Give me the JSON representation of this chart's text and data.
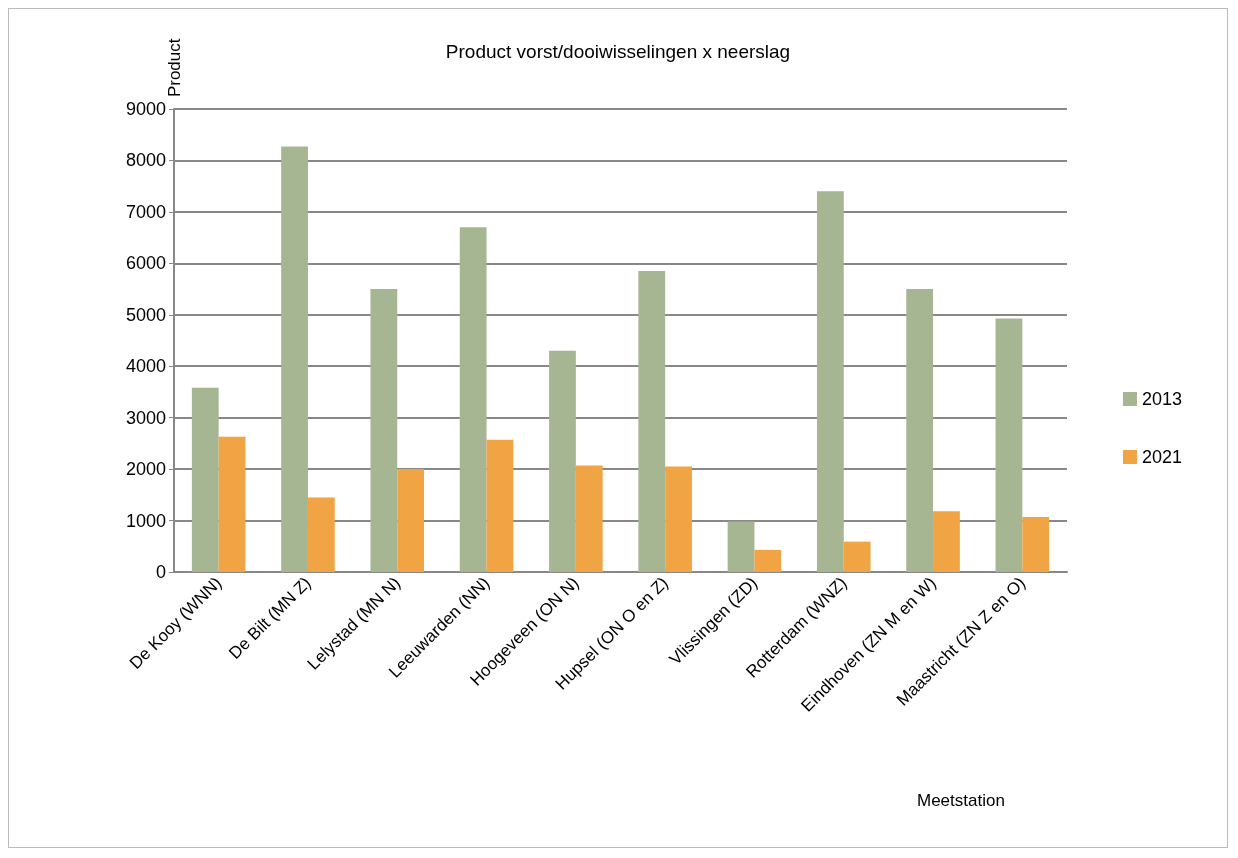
{
  "chart_data": {
    "type": "bar",
    "title": "Product vorst/dooiwisselingen x neerslag",
    "xlabel": "Meetstation",
    "ylabel": "Product",
    "categories": [
      "De Kooy (WNN)",
      "De Bilt (MN Z)",
      "Lelystad (MN N)",
      "Leeuwarden (NN)",
      "Hoogeveen (ON N)",
      "Hupsel (ON O en Z)",
      "Vlissingen (ZD)",
      "Rotterdam (WNZ)",
      "Eindhoven (ZN M en W)",
      "Maastricht (ZN Z en O)"
    ],
    "series": [
      {
        "name": "2013",
        "color": "#a6b592",
        "values": [
          3580,
          8270,
          5500,
          6700,
          4300,
          5850,
          980,
          7400,
          5500,
          4930
        ]
      },
      {
        "name": "2021",
        "color": "#f0a444",
        "values": [
          2630,
          1450,
          2000,
          2570,
          2070,
          2050,
          430,
          590,
          1180,
          1070
        ]
      }
    ],
    "ylim": [
      0,
      9000
    ],
    "yticks": [
      0,
      1000,
      2000,
      3000,
      4000,
      5000,
      6000,
      7000,
      8000,
      9000
    ],
    "grid": "y",
    "legend": "right"
  }
}
